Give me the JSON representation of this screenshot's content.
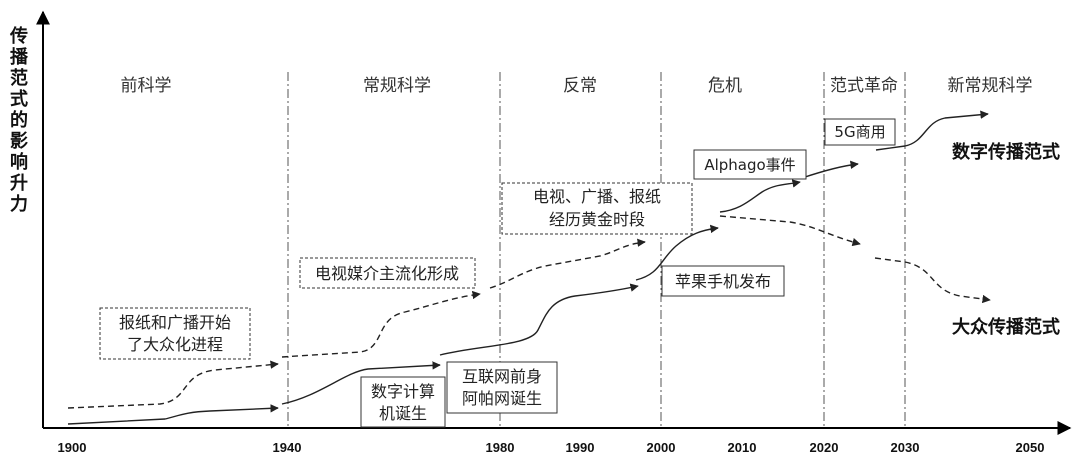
{
  "y_axis_label": "传播范式的影响升力",
  "x_ticks": [
    "1900",
    "1940",
    "1980",
    "1990",
    "2000",
    "2010",
    "2020",
    "2030",
    "2050"
  ],
  "phases": [
    "前科学",
    "常规科学",
    "反常",
    "危机",
    "范式革命",
    "新常规科学"
  ],
  "series": {
    "digital": "数字传播范式",
    "mass": "大众传播范式"
  },
  "annotations": {
    "newspaper_radio": [
      "报纸和广播开始",
      "了大众化进程"
    ],
    "tv_mainstream": [
      "电视媒介主流化形成"
    ],
    "golden_age": [
      "电视、广播、报纸",
      "经历黄金时段"
    ],
    "digital_computer": [
      "数字计算",
      "机诞生"
    ],
    "arpanet": [
      "互联网前身",
      "阿帕网诞生"
    ],
    "iphone": [
      "苹果手机发布"
    ],
    "alphago": [
      "Alphago事件"
    ],
    "5g": [
      "5G商用"
    ]
  },
  "colors": {
    "axis": "#000000",
    "line": "#222222",
    "divider": "#555555"
  }
}
